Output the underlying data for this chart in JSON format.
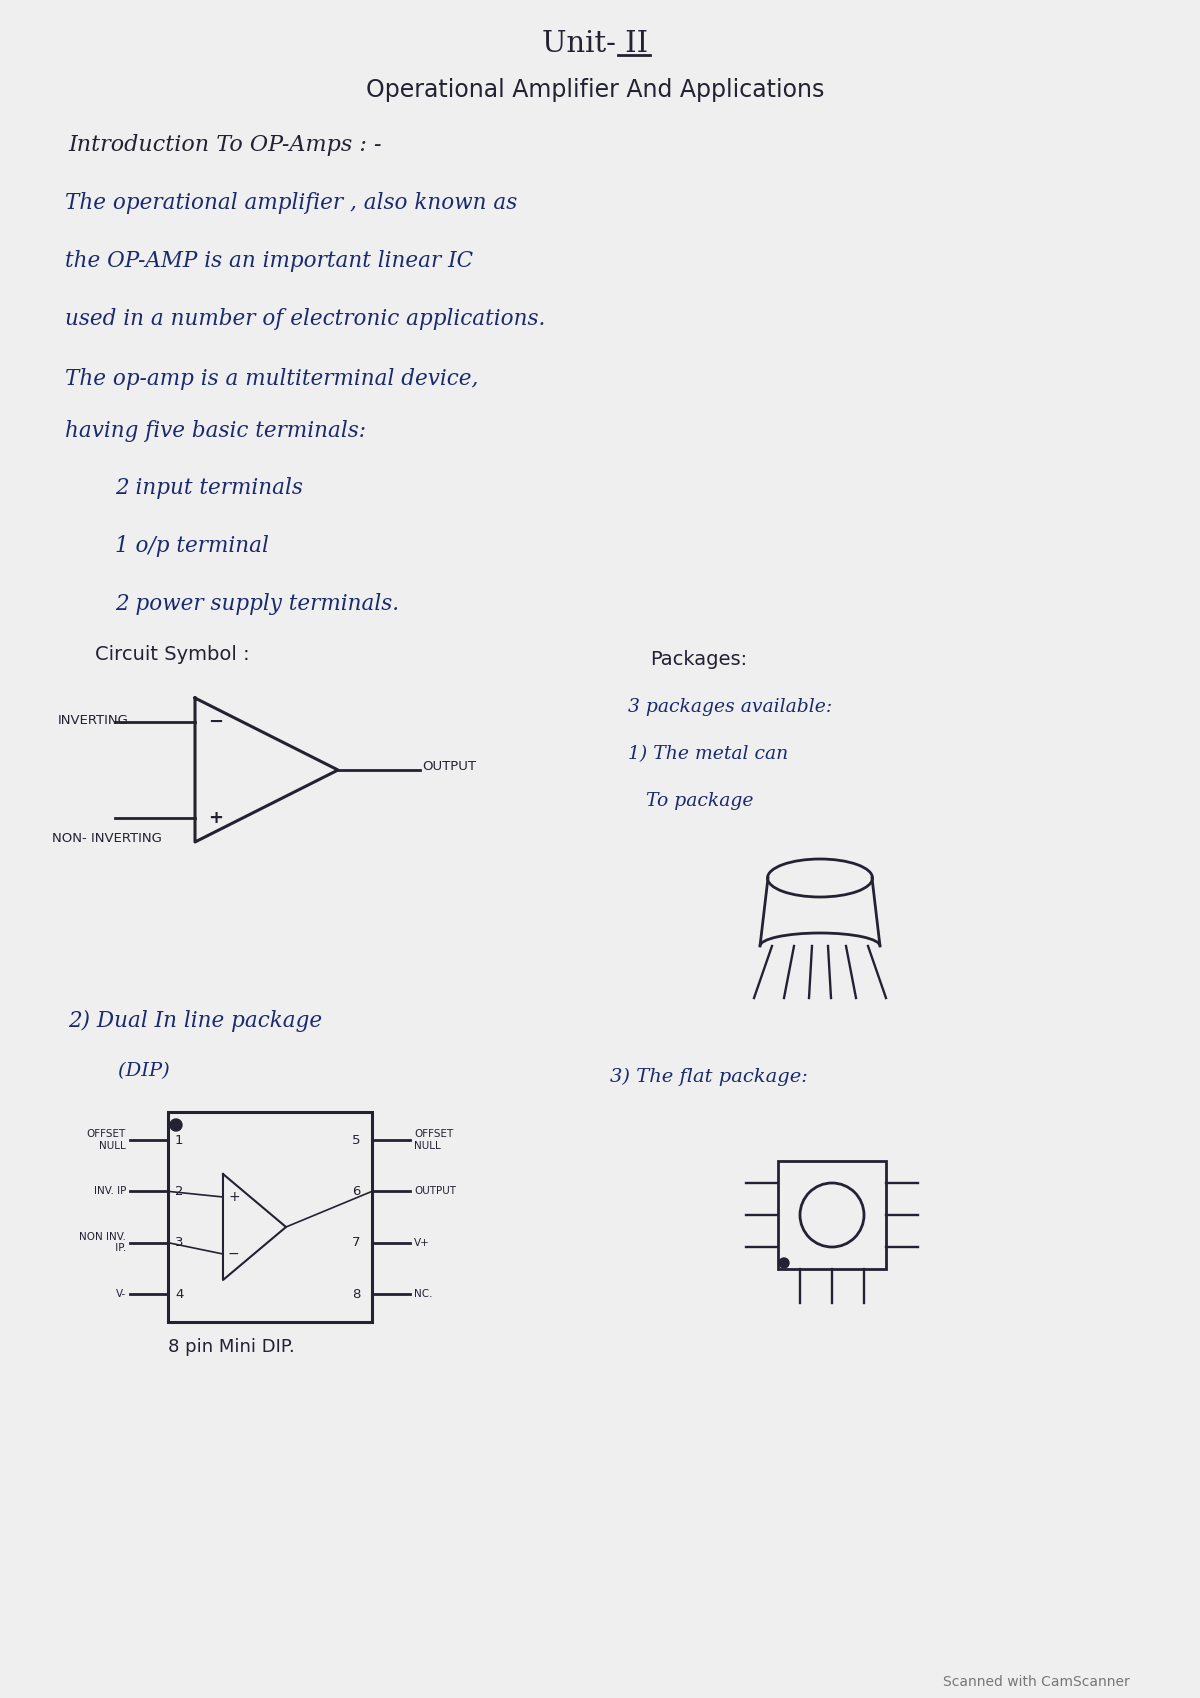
{
  "page_bg": "#efefef",
  "ink": "#1a2a6e",
  "dark": "#222233",
  "title1": "Unit- II",
  "title2": "Operational Amplifier And Applications",
  "section1": "Introduction To OP-Amps : -",
  "para1": [
    "The operational amplifier , also known as",
    "the OP-AMP is an important linear IC",
    "used in a number of electronic applications."
  ],
  "para2": [
    "The op-amp is a multiterminal device,",
    "having five basic terminals:"
  ],
  "bullets": [
    "2 input terminals",
    "1 o/p terminal",
    "2 power supply terminals."
  ],
  "circuit_label": "Circuit Symbol :",
  "inverting_label": "INVERTING",
  "noninverting_label": "NON- INVERTING",
  "output_label": "OUTPUT",
  "packages_label": "Packages:",
  "packages_text": [
    "3 packages available:",
    "1) The metal can",
    "   To package"
  ],
  "dip_line1": "2) Dual In line package",
  "dip_line2": "        (DIP)",
  "flat_label": "3) The flat package:",
  "pin8_label": "8 pin Mini DIP.",
  "left_pin_labels": [
    "OFFSET\nNULL",
    "INV. IP",
    "NON INV.\n IP.",
    "V-"
  ],
  "right_pin_labels": [
    "NC.",
    "V+",
    "OUTPUT",
    "OFFSET\nNULL"
  ],
  "scanner_text": "Scanned with CamScanner"
}
